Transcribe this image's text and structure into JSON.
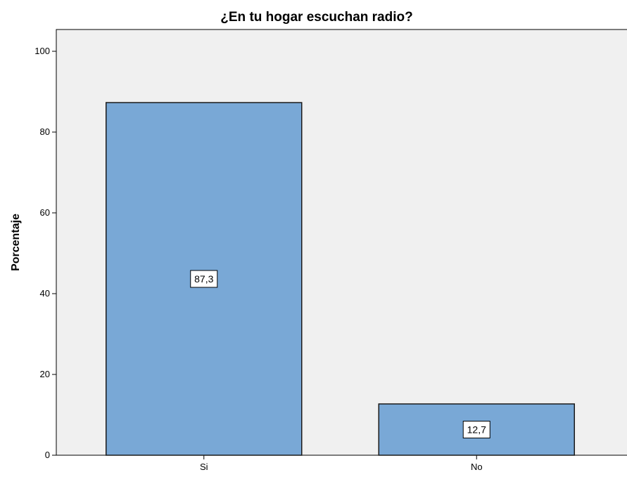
{
  "chart_data": {
    "type": "bar",
    "title": "¿En tu hogar escuchan radio?",
    "xlabel": "",
    "ylabel": "Porcentaje",
    "categories": [
      "Si",
      "No"
    ],
    "values": [
      87.3,
      12.7
    ],
    "data_labels": [
      "87,3",
      "12,7"
    ],
    "ylim": [
      0,
      100
    ],
    "yticks": [
      0,
      20,
      40,
      60,
      80,
      100
    ],
    "grid": false,
    "legend": "none",
    "colors": {
      "plot_background": "#f0f0f0",
      "bar_fill": "#79a8d6",
      "bar_stroke": "#1a1a1a",
      "label_box": "#ffffff"
    }
  }
}
